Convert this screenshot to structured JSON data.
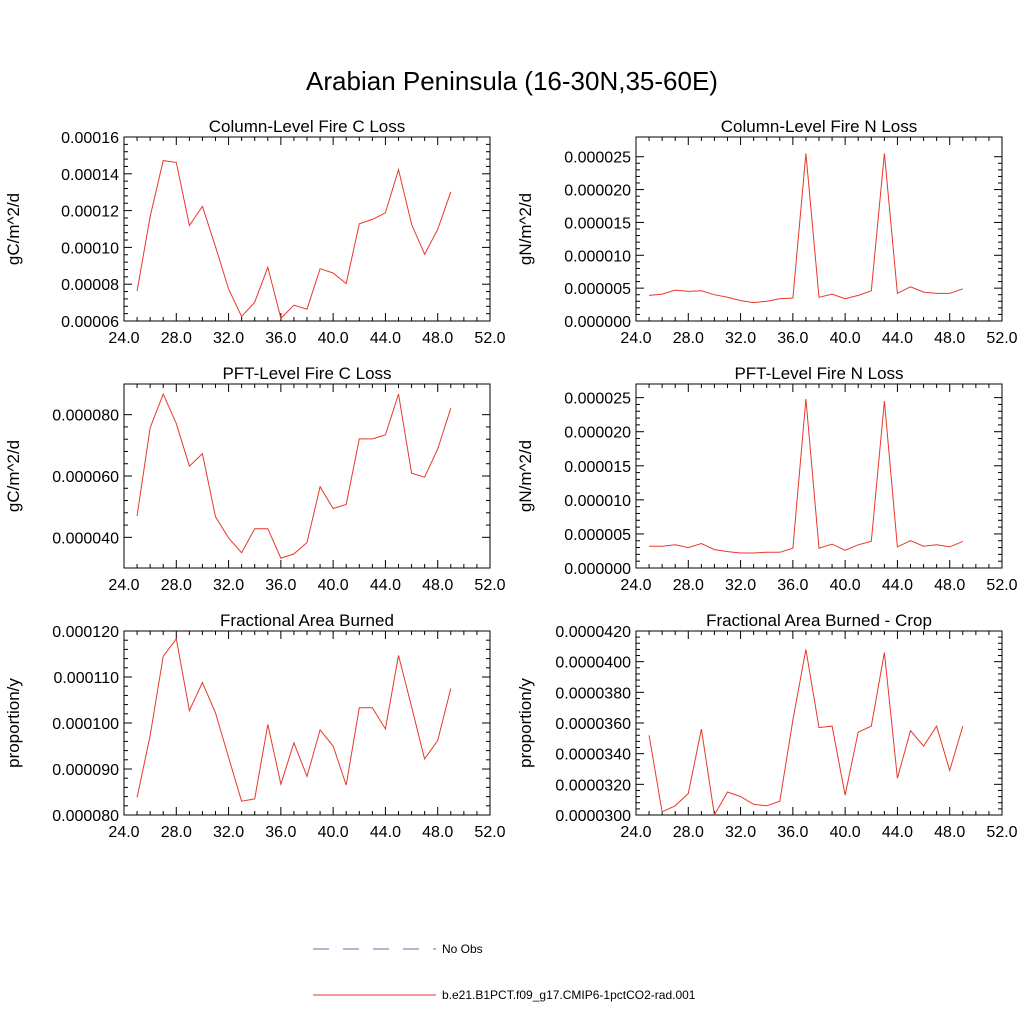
{
  "figure": {
    "title": "Arabian Peninsula (16-30N,35-60E)",
    "legend": [
      {
        "label": "No Obs",
        "color": "#6b6bb0",
        "style": "dashed"
      },
      {
        "label": "b.e21.B1PCT.f09_g17.CMIP6-1pctCO2-rad.001",
        "color": "#e8382a",
        "style": "solid"
      }
    ]
  },
  "chart_data": [
    {
      "type": "line",
      "title": "Column-Level Fire C Loss",
      "ylabel": "gC/m^2/d",
      "xlim": [
        24,
        52
      ],
      "ylim": [
        6e-05,
        0.00016
      ],
      "xticks": [
        24,
        28,
        32,
        36,
        40,
        44,
        48,
        52
      ],
      "xtick_labels": [
        "24.0",
        "28.0",
        "32.0",
        "36.0",
        "40.0",
        "44.0",
        "48.0",
        "52.0"
      ],
      "yticks": [
        6e-05,
        8e-05,
        0.0001,
        0.00012,
        0.00014,
        0.00016
      ],
      "ytick_labels": [
        "0.00006",
        "0.00008",
        "0.00010",
        "0.00012",
        "0.00014",
        "0.00016"
      ],
      "x": [
        25,
        26,
        27,
        28,
        29,
        30,
        31,
        32,
        33,
        34,
        35,
        36,
        37,
        38,
        39,
        40,
        41,
        42,
        43,
        44,
        45,
        46,
        47,
        48,
        49
      ],
      "series": [
        {
          "color": "#e8382a",
          "values": [
            7.63e-05,
            0.0001167,
            0.0001472,
            0.0001462,
            0.0001119,
            0.0001223,
            0.0001004,
            7.74e-05,
            6.24e-05,
            7.02e-05,
            8.92e-05,
            6.14e-05,
            6.86e-05,
            6.64e-05,
            8.84e-05,
            8.61e-05,
            8.03e-05,
            0.0001128,
            0.0001152,
            0.0001188,
            0.0001423,
            0.0001125,
            9.63e-05,
            0.0001098,
            0.0001302
          ]
        }
      ]
    },
    {
      "type": "line",
      "title": "Column-Level Fire N Loss",
      "ylabel": "gN/m^2/d",
      "xlim": [
        24,
        52
      ],
      "ylim": [
        0,
        2.8e-05
      ],
      "xticks": [
        24,
        28,
        32,
        36,
        40,
        44,
        48,
        52
      ],
      "xtick_labels": [
        "24.0",
        "28.0",
        "32.0",
        "36.0",
        "40.0",
        "44.0",
        "48.0",
        "52.0"
      ],
      "yticks": [
        0,
        5e-06,
        1e-05,
        1.5e-05,
        2e-05,
        2.5e-05
      ],
      "ytick_labels": [
        "0.000000",
        "0.000005",
        "0.000010",
        "0.000015",
        "0.000020",
        "0.000025"
      ],
      "x": [
        25,
        26,
        27,
        28,
        29,
        30,
        31,
        32,
        33,
        34,
        35,
        36,
        37,
        38,
        39,
        40,
        41,
        42,
        43,
        44,
        45,
        46,
        47,
        48,
        49
      ],
      "series": [
        {
          "color": "#e8382a",
          "values": [
            3.9e-06,
            4.1e-06,
            4.7e-06,
            4.5e-06,
            4.6e-06,
            4e-06,
            3.6e-06,
            3.1e-06,
            2.8e-06,
            3e-06,
            3.4e-06,
            3.5e-06,
            2.55e-05,
            3.6e-06,
            4.1e-06,
            3.4e-06,
            3.9e-06,
            4.6e-06,
            2.55e-05,
            4.2e-06,
            5.2e-06,
            4.4e-06,
            4.2e-06,
            4.2e-06,
            4.9e-06
          ]
        }
      ]
    },
    {
      "type": "line",
      "title": "PFT-Level Fire C Loss",
      "ylabel": "gC/m^2/d",
      "xlim": [
        24,
        52
      ],
      "ylim": [
        3e-05,
        9e-05
      ],
      "xticks": [
        24,
        28,
        32,
        36,
        40,
        44,
        48,
        52
      ],
      "xtick_labels": [
        "24.0",
        "28.0",
        "32.0",
        "36.0",
        "40.0",
        "44.0",
        "48.0",
        "52.0"
      ],
      "yticks": [
        4e-05,
        6e-05,
        8e-05
      ],
      "ytick_labels": [
        "0.000040",
        "0.000060",
        "0.000080"
      ],
      "x": [
        25,
        26,
        27,
        28,
        29,
        30,
        31,
        32,
        33,
        34,
        35,
        36,
        37,
        38,
        39,
        40,
        41,
        42,
        43,
        44,
        45,
        46,
        47,
        48,
        49
      ],
      "series": [
        {
          "color": "#e8382a",
          "values": [
            4.7e-05,
            7.57e-05,
            8.67e-05,
            7.71e-05,
            6.32e-05,
            6.73e-05,
            4.67e-05,
            3.98e-05,
            3.5e-05,
            4.28e-05,
            4.28e-05,
            3.32e-05,
            3.46e-05,
            3.83e-05,
            5.65e-05,
            4.94e-05,
            5.07e-05,
            7.21e-05,
            7.21e-05,
            7.34e-05,
            8.67e-05,
            6.09e-05,
            5.96e-05,
            6.88e-05,
            8.21e-05
          ]
        }
      ]
    },
    {
      "type": "line",
      "title": "PFT-Level Fire N Loss",
      "ylabel": "gN/m^2/d",
      "xlim": [
        24,
        52
      ],
      "ylim": [
        0,
        2.7e-05
      ],
      "xticks": [
        24,
        28,
        32,
        36,
        40,
        44,
        48,
        52
      ],
      "xtick_labels": [
        "24.0",
        "28.0",
        "32.0",
        "36.0",
        "40.0",
        "44.0",
        "48.0",
        "52.0"
      ],
      "yticks": [
        0,
        5e-06,
        1e-05,
        1.5e-05,
        2e-05,
        2.5e-05
      ],
      "ytick_labels": [
        "0.000000",
        "0.000005",
        "0.000010",
        "0.000015",
        "0.000020",
        "0.000025"
      ],
      "x": [
        25,
        26,
        27,
        28,
        29,
        30,
        31,
        32,
        33,
        34,
        35,
        36,
        37,
        38,
        39,
        40,
        41,
        42,
        43,
        44,
        45,
        46,
        47,
        48,
        49
      ],
      "series": [
        {
          "color": "#e8382a",
          "values": [
            3.2e-06,
            3.2e-06,
            3.4e-06,
            3e-06,
            3.6e-06,
            2.7e-06,
            2.4e-06,
            2.2e-06,
            2.2e-06,
            2.3e-06,
            2.3e-06,
            2.9e-06,
            2.48e-05,
            2.9e-06,
            3.5e-06,
            2.6e-06,
            3.4e-06,
            3.9e-06,
            2.45e-05,
            3.1e-06,
            4e-06,
            3.2e-06,
            3.4e-06,
            3.1e-06,
            3.9e-06
          ]
        }
      ]
    },
    {
      "type": "line",
      "title": "Fractional Area Burned",
      "ylabel": "proportion/y",
      "xlim": [
        24,
        52
      ],
      "ylim": [
        8e-05,
        0.00012
      ],
      "xticks": [
        24,
        28,
        32,
        36,
        40,
        44,
        48,
        52
      ],
      "xtick_labels": [
        "24.0",
        "28.0",
        "32.0",
        "36.0",
        "40.0",
        "44.0",
        "48.0",
        "52.0"
      ],
      "yticks": [
        8e-05,
        9e-05,
        0.0001,
        0.00011,
        0.00012
      ],
      "ytick_labels": [
        "0.000080",
        "0.000090",
        "0.000100",
        "0.000110",
        "0.000120"
      ],
      "x": [
        25,
        26,
        27,
        28,
        29,
        30,
        31,
        32,
        33,
        34,
        35,
        36,
        37,
        38,
        39,
        40,
        41,
        42,
        43,
        44,
        45,
        46,
        47,
        48,
        49
      ],
      "series": [
        {
          "color": "#e8382a",
          "values": [
            8.38e-05,
            9.72e-05,
            0.0001145,
            0.0001183,
            0.0001027,
            0.0001088,
            0.0001022,
            9.25e-05,
            8.3e-05,
            8.35e-05,
            9.97e-05,
            8.67e-05,
            9.57e-05,
            8.84e-05,
            9.85e-05,
            9.5e-05,
            8.65e-05,
            0.0001033,
            0.0001033,
            9.87e-05,
            0.0001147,
            0.0001035,
            9.22e-05,
            9.62e-05,
            0.0001075
          ]
        }
      ]
    },
    {
      "type": "line",
      "title": "Fractional Area Burned - Crop",
      "ylabel": "proportion/y",
      "xlim": [
        24,
        52
      ],
      "ylim": [
        3e-05,
        4.2e-05
      ],
      "xticks": [
        24,
        28,
        32,
        36,
        40,
        44,
        48,
        52
      ],
      "xtick_labels": [
        "24.0",
        "28.0",
        "32.0",
        "36.0",
        "40.0",
        "44.0",
        "48.0",
        "52.0"
      ],
      "yticks": [
        3e-05,
        3.2e-05,
        3.4e-05,
        3.6e-05,
        3.8e-05,
        4e-05,
        4.2e-05
      ],
      "ytick_labels": [
        "0.0000300",
        "0.0000320",
        "0.0000340",
        "0.0000360",
        "0.0000380",
        "0.0000400",
        "0.0000420"
      ],
      "x": [
        25,
        26,
        27,
        28,
        29,
        30,
        31,
        32,
        33,
        34,
        35,
        36,
        37,
        38,
        39,
        40,
        41,
        42,
        43,
        44,
        45,
        46,
        47,
        48,
        49
      ],
      "series": [
        {
          "color": "#e8382a",
          "values": [
            3.52e-05,
            3.02e-05,
            3.06e-05,
            3.14e-05,
            3.56e-05,
            3e-05,
            3.15e-05,
            3.12e-05,
            3.07e-05,
            3.06e-05,
            3.09e-05,
            3.62e-05,
            4.08e-05,
            3.57e-05,
            3.58e-05,
            3.13e-05,
            3.54e-05,
            3.58e-05,
            4.06e-05,
            3.24e-05,
            3.55e-05,
            3.45e-05,
            3.58e-05,
            3.29e-05,
            3.58e-05
          ]
        }
      ]
    }
  ]
}
